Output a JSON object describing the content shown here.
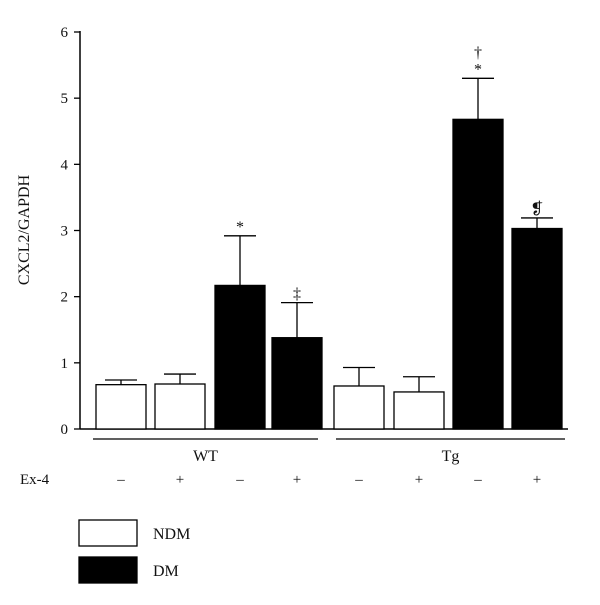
{
  "chart_data": {
    "type": "bar",
    "ylabel": "CXCL2/GAPDH",
    "ylim": [
      0,
      6
    ],
    "yticks": [
      "0",
      "1",
      "2",
      "3",
      "4",
      "5",
      "6"
    ],
    "row_label": "Ex-4",
    "bars": [
      {
        "group": "WT",
        "ex4": "–",
        "series": "NDM",
        "value": 0.67,
        "error": 0.07,
        "annotation": ""
      },
      {
        "group": "WT",
        "ex4": "+",
        "series": "NDM",
        "value": 0.68,
        "error": 0.15,
        "annotation": ""
      },
      {
        "group": "WT",
        "ex4": "–",
        "series": "DM",
        "value": 2.17,
        "error": 0.75,
        "annotation": "*"
      },
      {
        "group": "WT",
        "ex4": "+",
        "series": "DM",
        "value": 1.38,
        "error": 0.53,
        "annotation": "‡"
      },
      {
        "group": "Tg",
        "ex4": "–",
        "series": "NDM",
        "value": 0.65,
        "error": 0.28,
        "annotation": ""
      },
      {
        "group": "Tg",
        "ex4": "+",
        "series": "NDM",
        "value": 0.56,
        "error": 0.23,
        "annotation": ""
      },
      {
        "group": "Tg",
        "ex4": "–",
        "series": "DM",
        "value": 4.68,
        "error": 0.62,
        "annotation": "†\n*"
      },
      {
        "group": "Tg",
        "ex4": "+",
        "series": "DM",
        "value": 3.03,
        "error": 0.16,
        "annotation": "❡"
      }
    ],
    "groups": [
      "WT",
      "Tg"
    ],
    "legend": [
      {
        "name": "NDM",
        "fill": "#ffffff"
      },
      {
        "name": "DM",
        "fill": "#000000"
      }
    ],
    "legend_position": "bottom-left"
  }
}
